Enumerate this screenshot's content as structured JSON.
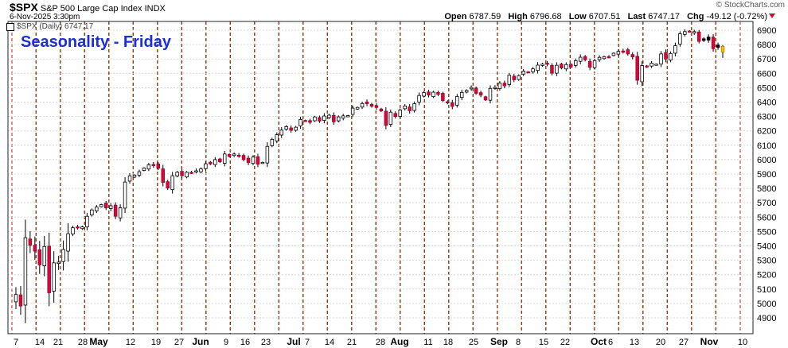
{
  "header": {
    "symbol": "$SPX",
    "description": "S&P 500 Large Cap Index",
    "exchange": "INDX",
    "datetime": "6-Nov-2025 3:30pm",
    "copyright": "© StockCharts.com",
    "open_label": "Open",
    "open": "6787.59",
    "high_label": "High",
    "high": "6796.68",
    "low_label": "Low",
    "low": "6707.51",
    "last_label": "Last",
    "last": "6747.17",
    "chg_label": "Chg",
    "chg": "-49.12 (-0.72%)"
  },
  "legend": "$SPX (Daily) 6747.17",
  "annotation": "Seasonality - Friday",
  "colors": {
    "up": "#ffffff",
    "down": "#d6083b",
    "friday_line": "#1a9e1a",
    "monday_line": "#d61a1a",
    "annotation": "#1c2fd6",
    "current": "#f2c100"
  },
  "chart_data": {
    "type": "candlestick",
    "title": "Seasonality - Friday",
    "y_ticks": [
      4900,
      5000,
      5100,
      5200,
      5300,
      5400,
      5500,
      5600,
      5700,
      5800,
      5900,
      6000,
      6100,
      6200,
      6300,
      6400,
      6500,
      6600,
      6700,
      6800,
      6900
    ],
    "ylim": [
      4800,
      6950
    ],
    "x_tick_labels": [
      "7",
      "14",
      "21",
      "28",
      "May",
      "12",
      "19",
      "27",
      "Jun",
      "9",
      "16",
      "23",
      "Jul",
      "7",
      "14",
      "21",
      "28",
      "Aug",
      "11",
      "18",
      "25",
      "Sep",
      "8",
      "15",
      "22",
      "Oct",
      "6",
      "13",
      "20",
      "27",
      "Nov",
      "10"
    ],
    "bold_x_ticks": [
      "May",
      "Jun",
      "Jul",
      "Aug",
      "Sep",
      "Oct",
      "Nov"
    ],
    "vertical_lines": "red dashed lines mark the first trading day of each week; green dashed lines mark the Friday of each week",
    "closes": [
      5062,
      4982,
      5457,
      5405,
      5364,
      5268,
      5396,
      5074,
      5282,
      5287,
      5375,
      5485,
      5526,
      5529,
      5532,
      5606,
      5650,
      5670,
      5687,
      5664,
      5679,
      5606,
      5665,
      5844,
      5887,
      5892,
      5916,
      5941,
      5964,
      5959,
      5940,
      5842,
      5802,
      5888,
      5912,
      5888,
      5912,
      5911,
      5922,
      5935,
      5971,
      5970,
      6000,
      5985,
      6039,
      6022,
      6039,
      6029,
      6001,
      5980,
      6018,
      5968,
      5981,
      6092,
      6141,
      6173,
      6205,
      6229,
      6204,
      6225,
      6279,
      6269,
      6259,
      6297,
      6268,
      6303,
      6309,
      6263,
      6297,
      6304,
      6306,
      6358,
      6363,
      6390,
      6389,
      6371,
      6363,
      6339,
      6238,
      6330,
      6300,
      6345,
      6373,
      6340,
      6389,
      6446,
      6466,
      6449,
      6469,
      6454,
      6411,
      6396,
      6370,
      6439,
      6467,
      6481,
      6502,
      6461,
      6448,
      6415,
      6495,
      6502,
      6532,
      6513,
      6587,
      6555,
      6584,
      6615,
      6606,
      6631,
      6657,
      6664,
      6664,
      6601,
      6656,
      6637,
      6661,
      6644,
      6688,
      6712,
      6694,
      6642,
      6688,
      6711,
      6716,
      6715,
      6740,
      6753,
      6753,
      6735,
      6714,
      6552,
      6654,
      6644,
      6671,
      6664,
      6735,
      6699,
      6738,
      6792,
      6875,
      6890,
      6891,
      6890,
      6822,
      6840,
      6852,
      6771,
      6797,
      6747
    ],
    "last_candle": {
      "open": 6787.59,
      "high": 6796.68,
      "low": 6707.51,
      "close": 6747.17
    }
  }
}
